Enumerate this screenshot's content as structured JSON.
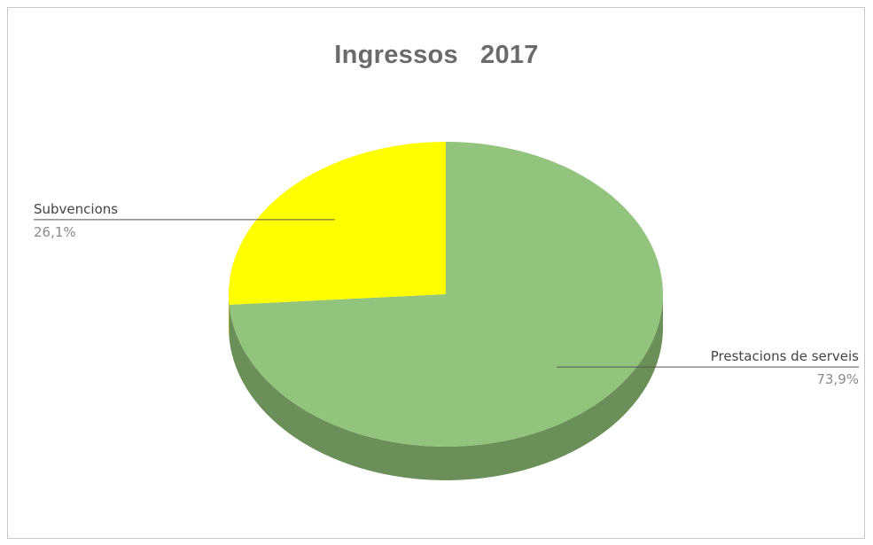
{
  "chart_data": {
    "type": "pie",
    "title": "Ingressos   2017",
    "three_d": true,
    "slices": [
      {
        "label": "Prestacions de serveis",
        "value": 73.9,
        "display": "73,9%",
        "color": "#93c47d",
        "side_color": "#6a8f58"
      },
      {
        "label": "Subvencions",
        "value": 26.1,
        "display": "26,1%",
        "color": "#ffff00",
        "side_color": "#b5b500"
      }
    ],
    "label_color": "#444444",
    "percent_color": "#8a8a8a",
    "legend": "none"
  }
}
